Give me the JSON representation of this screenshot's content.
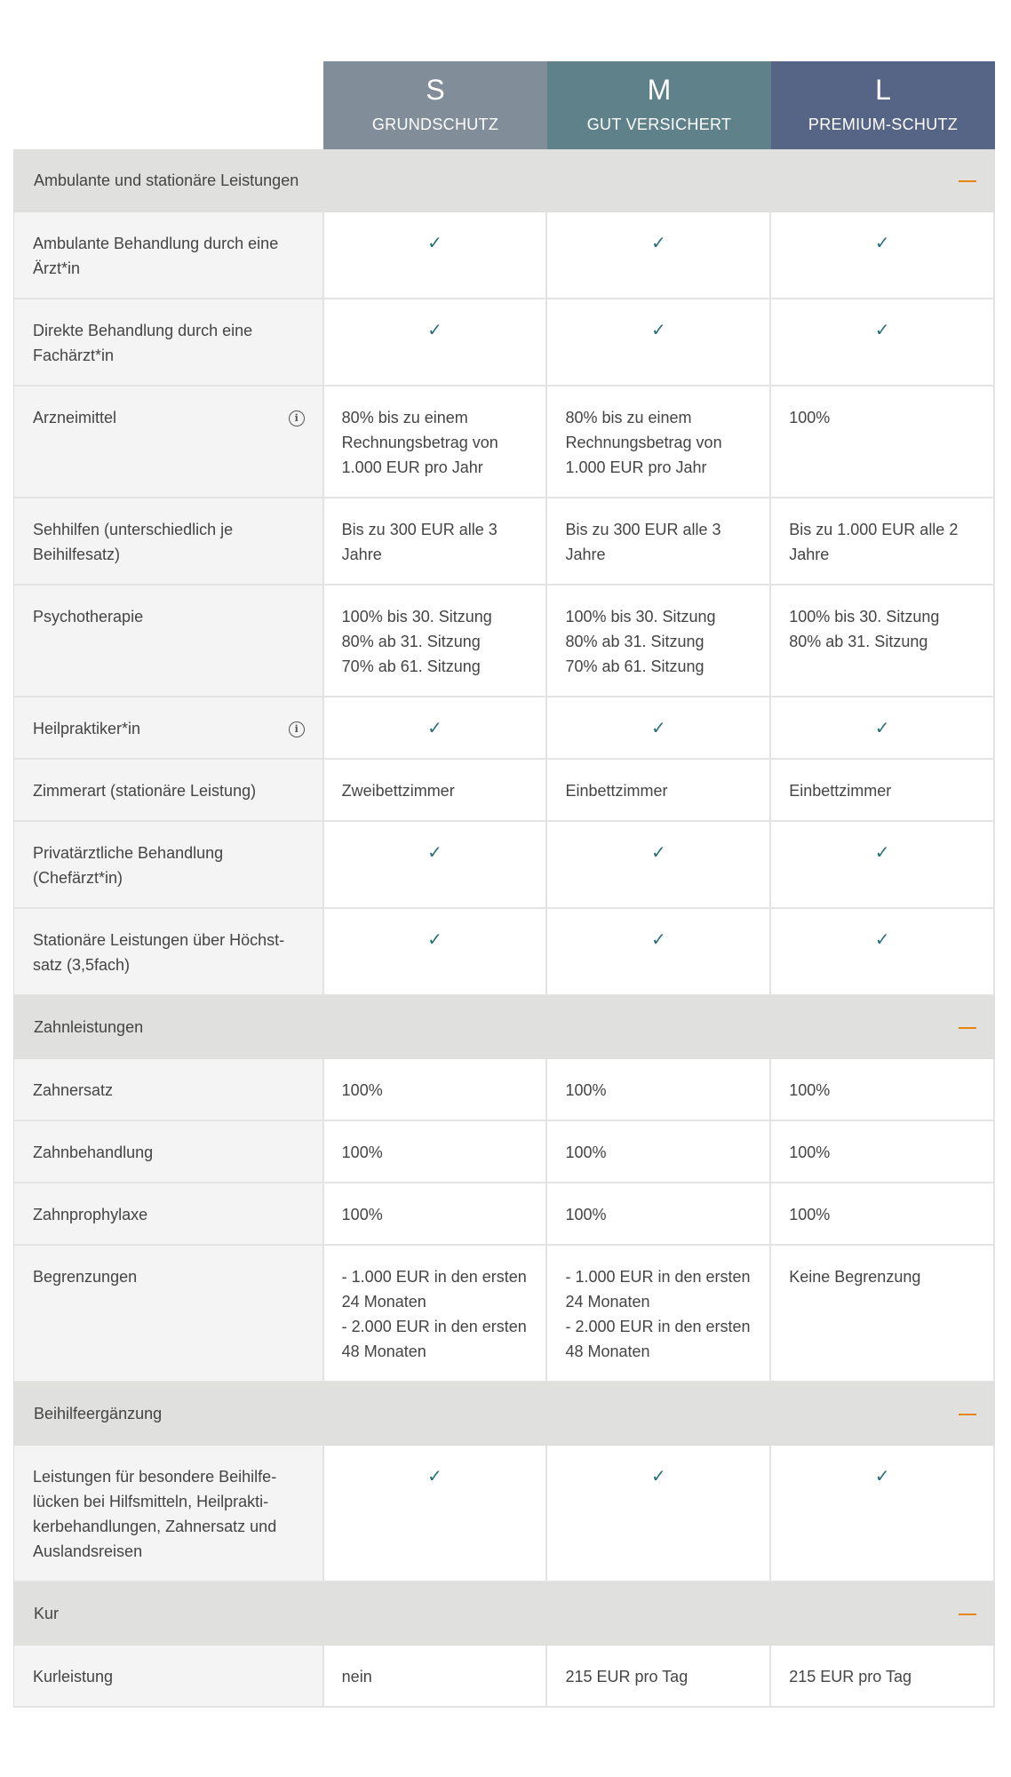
{
  "colors": {
    "plan_s": "#818e99",
    "plan_m": "#5e818a",
    "plan_l": "#566486",
    "check": "#2a6f7a",
    "collapse": "#e8860c"
  },
  "plans": [
    {
      "letter": "S",
      "name": "GRUNDSCHUTZ"
    },
    {
      "letter": "M",
      "name": "GUT VERSICHERT"
    },
    {
      "letter": "L",
      "name": "PREMIUM-SCHUTZ"
    }
  ],
  "sections": [
    {
      "title": "Ambulante und stationäre Leistungen",
      "icon": "minus-icon",
      "rows": [
        {
          "label": "Ambulante Behandlung durch eine Ärzt*in",
          "values": [
            "✓",
            "✓",
            "✓"
          ]
        },
        {
          "label": "Direkte Behandlung durch eine Fachärzt*in",
          "values": [
            "✓",
            "✓",
            "✓"
          ]
        },
        {
          "label": "Arzneimittel",
          "info": true,
          "values": [
            "80% bis zu einem Rechnungsbetrag von 1.000 EUR pro Jahr",
            "80% bis zu einem Rechnungsbetrag von 1.000 EUR pro Jahr",
            "100%"
          ]
        },
        {
          "label": "Sehhilfen (unterschiedlich je Beihilfesatz)",
          "values": [
            "Bis zu 300 EUR alle 3 Jahre",
            "Bis zu 300 EUR alle 3 Jahre",
            "Bis zu 1.000 EUR alle 2 Jahre"
          ]
        },
        {
          "label": "Psychotherapie",
          "values": [
            "100% bis 30. Sitzung\n80%  ab 31. Sitzung\n70%  ab 61. Sitzung",
            "100% bis 30. Sitzung\n80% ab 31. Sitzung\n70%  ab 61. Sitzung",
            "100% bis 30. Sitzung\n80% ab 31. Sitzung"
          ]
        },
        {
          "label": "Heilpraktiker*in",
          "info": true,
          "values": [
            "✓",
            "✓",
            "✓"
          ]
        },
        {
          "label": "Zimmerart (stationäre Leistung)",
          "values": [
            "Zweibettzimmer",
            "Einbettzimmer",
            "Einbettzimmer"
          ]
        },
        {
          "label": "Privatärztliche Behandlung (Chefärzt*in)",
          "values": [
            "✓",
            "✓",
            "✓"
          ]
        },
        {
          "label": "Stationäre Leistungen über Höchst-satz (3,5fach)",
          "values": [
            "✓",
            "✓",
            "✓"
          ]
        }
      ]
    },
    {
      "title": "Zahnleistungen",
      "icon": "minus-icon",
      "rows": [
        {
          "label": "Zahnersatz",
          "values": [
            "100%",
            "100%",
            "100%"
          ]
        },
        {
          "label": "Zahnbehandlung",
          "values": [
            "100%",
            "100%",
            "100%"
          ]
        },
        {
          "label": "Zahnprophylaxe",
          "values": [
            "100%",
            "100%",
            "100%"
          ]
        },
        {
          "label": "Begrenzungen",
          "values": [
            "- 1.000 EUR in den ersten 24 Monaten\n- 2.000 EUR in den ersten 48 Monaten",
            "- 1.000 EUR in den ersten 24 Monaten\n- 2.000 EUR in den ersten 48 Monaten",
            "Keine Begrenzung"
          ]
        }
      ]
    },
    {
      "title": "Beihilfeergänzung",
      "icon": "minus-icon",
      "rows": [
        {
          "label": "Leistungen für besondere Beihilfe-lücken bei Hilfsmitteln, Heilprakti-kerbehandlungen, Zahnersatz und Auslandsreisen",
          "values": [
            "✓",
            "✓",
            "✓"
          ]
        }
      ]
    },
    {
      "title": "Kur",
      "icon": "minus-icon",
      "rows": [
        {
          "label": "Kurleistung",
          "values": [
            "nein",
            "215 EUR pro Tag",
            "215 EUR pro Tag"
          ]
        }
      ]
    }
  ]
}
